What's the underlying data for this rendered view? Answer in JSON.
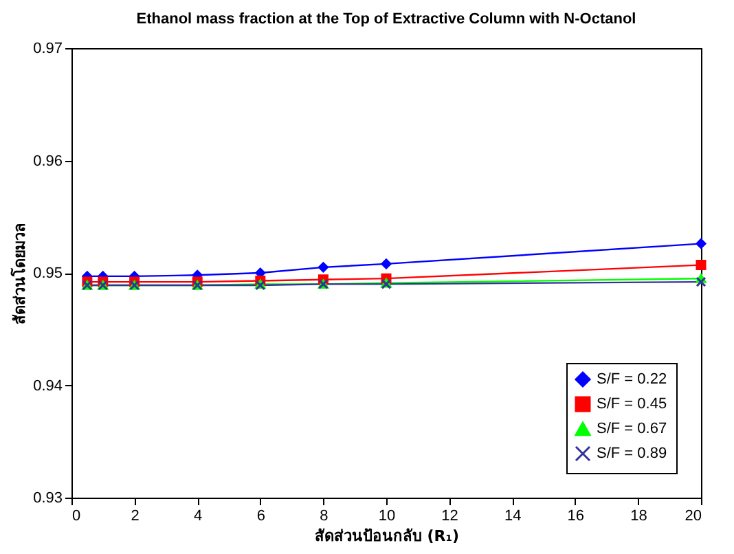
{
  "chart_data": {
    "type": "line",
    "title": "Ethanol mass fraction at the Top of Extractive Column with N-Octanol",
    "xlabel": "สัดส่วนป้อนกลับ (R₁)",
    "ylabel": "สัดส่วนโดยมวล",
    "x": [
      0.5,
      1,
      2,
      4,
      6,
      8,
      10,
      20
    ],
    "series": [
      {
        "name": "S/F = 0.22",
        "color": "#0000ff",
        "marker": "diamond",
        "values": [
          0.9497,
          0.9497,
          0.9497,
          0.9498,
          0.95,
          0.9505,
          0.9508,
          0.9526
        ]
      },
      {
        "name": "S/F = 0.45",
        "color": "#ff0000",
        "marker": "square",
        "values": [
          0.9492,
          0.9492,
          0.9492,
          0.9492,
          0.9493,
          0.9494,
          0.9495,
          0.9507
        ]
      },
      {
        "name": "S/F = 0.67",
        "color": "#00ff00",
        "marker": "triangle",
        "values": [
          0.9489,
          0.9489,
          0.9489,
          0.9489,
          0.949,
          0.949,
          0.9491,
          0.9495
        ]
      },
      {
        "name": "S/F = 0.89",
        "color": "#333399",
        "marker": "cross",
        "values": [
          0.9489,
          0.9489,
          0.9489,
          0.9489,
          0.9489,
          0.949,
          0.949,
          0.9492
        ]
      }
    ],
    "xlim": [
      0,
      20
    ],
    "xticks": [
      0,
      2,
      4,
      6,
      8,
      10,
      12,
      14,
      16,
      18,
      20
    ],
    "ylim": [
      0.93,
      0.97
    ],
    "yticks": [
      0.93,
      0.94,
      0.95,
      0.96,
      0.97
    ],
    "grid": false,
    "legend": "bottom right",
    "line_style": "solid"
  }
}
